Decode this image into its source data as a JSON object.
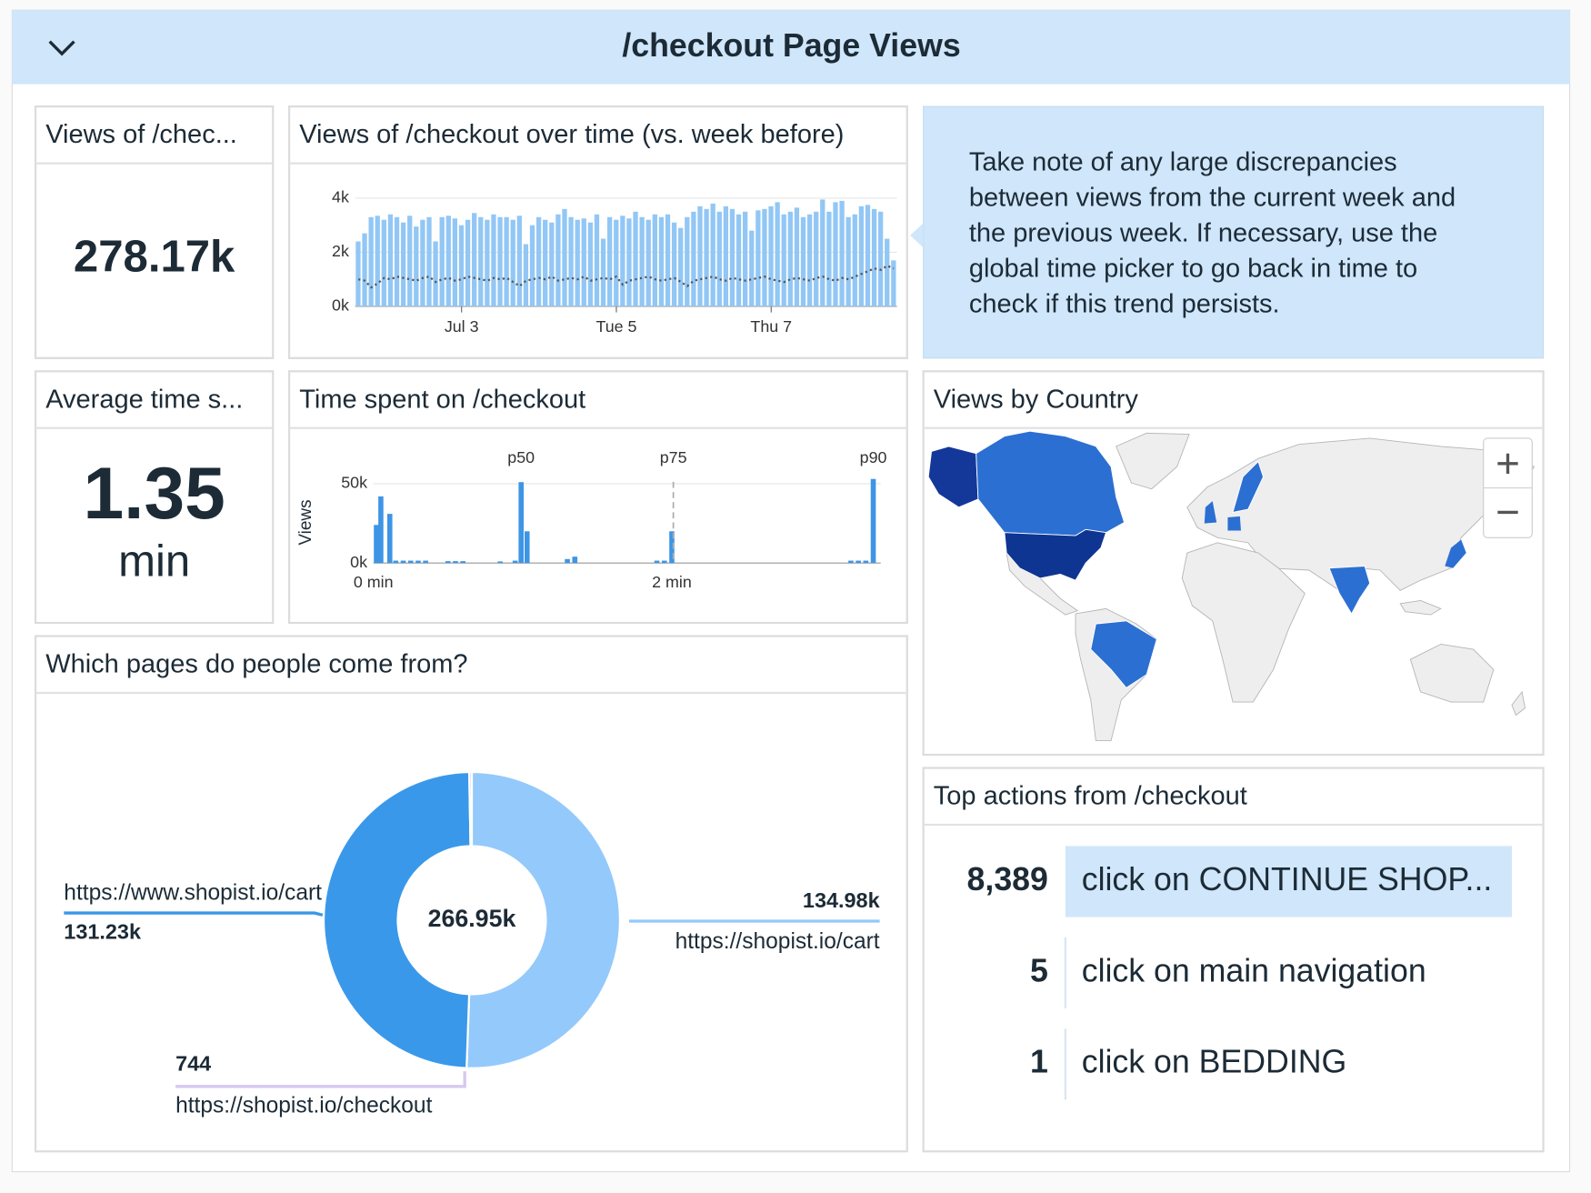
{
  "header": {
    "title": "/checkout Page Views"
  },
  "widgets": {
    "views_total": {
      "title": "Views of /chec...",
      "value": "278.17k"
    },
    "avg_time": {
      "title": "Average time s...",
      "value": "1.35",
      "unit": "min"
    },
    "note": {
      "lines": [
        "Take note of any large discrepancies",
        "between views from the current week and",
        "the previous week. If necessary, use the",
        "global time picker to go back in time to",
        "check if this trend persists."
      ]
    },
    "map": {
      "title": "Views by Country"
    },
    "top_actions": {
      "title": "Top actions from /checkout",
      "rows": [
        {
          "count": "8,389",
          "label": "click on CONTINUE SHOP..."
        },
        {
          "count": "5",
          "label": "click on main navigation"
        },
        {
          "count": "1",
          "label": "click on BEDDING"
        }
      ]
    }
  },
  "chart_data": [
    {
      "type": "bar",
      "title": "Views of /checkout over time (vs. week before)",
      "categories": [
        null,
        null,
        null,
        null,
        null,
        null,
        null,
        null,
        null,
        null,
        null,
        null,
        null,
        null,
        null,
        null,
        "Jul 3",
        null,
        null,
        null,
        null,
        null,
        null,
        null,
        null,
        null,
        null,
        null,
        null,
        null,
        null,
        null,
        null,
        null,
        null,
        null,
        null,
        null,
        null,
        null,
        "Tue 5",
        null,
        null,
        null,
        null,
        null,
        null,
        null,
        null,
        null,
        null,
        null,
        null,
        null,
        null,
        null,
        null,
        null,
        null,
        null,
        null,
        null,
        null,
        null,
        "Thu 7",
        null,
        null,
        null,
        null,
        null,
        null,
        null,
        null,
        null,
        null,
        null,
        null,
        null,
        null,
        null,
        null,
        null,
        null,
        null
      ],
      "series": [
        {
          "type": "bar",
          "color": "#92c7f5",
          "values": [
            2400,
            2700,
            3300,
            3350,
            3200,
            3400,
            3300,
            3100,
            3350,
            2950,
            3200,
            3300,
            2400,
            3300,
            3350,
            3250,
            3000,
            3200,
            3450,
            3300,
            3200,
            3400,
            3300,
            3300,
            3200,
            3350,
            2300,
            3000,
            3300,
            3200,
            3100,
            3400,
            3600,
            3300,
            3200,
            3250,
            3100,
            3400,
            2500,
            3300,
            3200,
            3350,
            3250,
            3500,
            3300,
            3200,
            3400,
            3300,
            3400,
            3100,
            2900,
            3300,
            3500,
            3700,
            3600,
            3800,
            3500,
            3700,
            3600,
            3400,
            3500,
            2800,
            3550,
            3600,
            3700,
            3850,
            3400,
            3500,
            3650,
            3300,
            3400,
            3500,
            3950,
            3500,
            3850,
            3900,
            3300,
            3400,
            3700,
            3750,
            3600,
            3500,
            2500,
            1700
          ]
        },
        {
          "type": "line",
          "line_style": "dotted",
          "color": "#555555",
          "values": [
            1000,
            950,
            700,
            850,
            1050,
            1000,
            1100,
            1050,
            1000,
            950,
            1050,
            1100,
            900,
            1000,
            1050,
            950,
            1000,
            1100,
            1050,
            1000,
            950,
            1050,
            1000,
            1050,
            900,
            750,
            950,
            1000,
            1050,
            1000,
            1100,
            950,
            1000,
            1050,
            1000,
            1100,
            950,
            1000,
            1050,
            1000,
            1100,
            800,
            950,
            1000,
            1050,
            1100,
            1000,
            950,
            1000,
            1050,
            900,
            750,
            950,
            1000,
            1050,
            1100,
            1000,
            950,
            1050,
            1000,
            950,
            1000,
            1050,
            1100,
            1000,
            950,
            900,
            1000,
            1050,
            1000,
            950,
            1050,
            1100,
            1000,
            950,
            1050,
            1000,
            1100,
            1200,
            1300,
            1400,
            1350,
            1500,
            1400
          ]
        }
      ],
      "ylim": [
        0,
        4200
      ],
      "yticks": [
        {
          "value": 0,
          "label": "0k"
        },
        {
          "value": 2000,
          "label": "2k"
        },
        {
          "value": 4000,
          "label": "4k"
        }
      ],
      "grid": true
    },
    {
      "type": "bar",
      "title": "Time spent on /checkout",
      "y_label": "Views",
      "x": [
        0.02,
        0.05,
        0.11,
        0.15,
        0.2,
        0.25,
        0.3,
        0.35,
        0.5,
        0.55,
        0.6,
        0.85,
        0.95,
        0.99,
        1.03,
        1.3,
        1.35,
        1.9,
        1.95,
        2.0,
        3.2,
        3.25,
        3.3,
        3.35
      ],
      "values": [
        24000,
        42000,
        31000,
        1500,
        1500,
        1500,
        1500,
        1500,
        1200,
        1200,
        1200,
        1000,
        1500,
        51000,
        20000,
        2500,
        4000,
        1500,
        1500,
        20000,
        1500,
        1500,
        1500,
        53000
      ],
      "color": "#3d95e6",
      "xlim": [
        0,
        3.4
      ],
      "xticks": [
        {
          "value": 0,
          "label": "0 min"
        },
        {
          "value": 2,
          "label": "2 min"
        }
      ],
      "ylim": [
        0,
        55000
      ],
      "yticks": [
        {
          "value": 0,
          "label": "0k"
        },
        {
          "value": 50000,
          "label": "50k"
        }
      ],
      "grid": true,
      "markers": [
        {
          "label": "p50",
          "value": 0.99
        },
        {
          "label": "p75",
          "value": 2.01,
          "dashed": true
        },
        {
          "label": "p90",
          "value": 3.35
        }
      ]
    },
    {
      "type": "donut",
      "title": "Which pages do people come from?",
      "categories": [
        "https://shopist.io/cart",
        "https://www.shopist.io/cart",
        "https://shopist.io/checkout"
      ],
      "values": [
        134980,
        131230,
        744
      ],
      "value_labels": [
        "134.98k",
        "131.23k",
        "744"
      ],
      "colors": [
        "#94c9fb",
        "#3a98ea",
        "#d6c8ef"
      ],
      "center_label": "266.95k"
    }
  ]
}
